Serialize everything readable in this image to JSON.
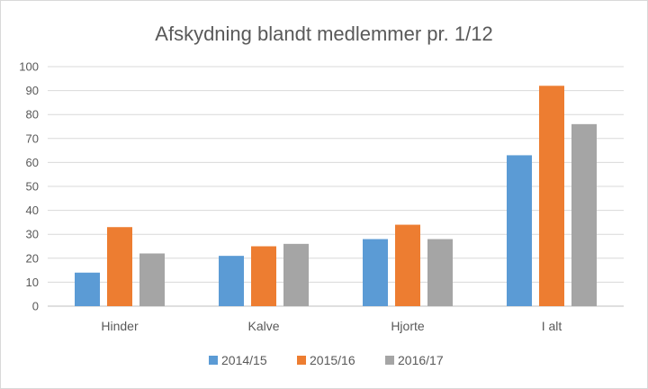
{
  "chart_data": {
    "type": "bar",
    "title": "Afskydning blandt medlemmer pr. 1/12",
    "xlabel": "",
    "ylabel": "",
    "categories": [
      "Hinder",
      "Kalve",
      "Hjorte",
      "I alt"
    ],
    "series": [
      {
        "name": "2014/15",
        "color": "#5b9bd5",
        "values": [
          14,
          21,
          28,
          63
        ]
      },
      {
        "name": "2015/16",
        "color": "#ed7d31",
        "values": [
          33,
          25,
          34,
          92
        ]
      },
      {
        "name": "2016/17",
        "color": "#a5a5a5",
        "values": [
          22,
          26,
          28,
          76
        ]
      }
    ],
    "ylim": [
      0,
      100
    ],
    "yticks": [
      0,
      10,
      20,
      30,
      40,
      50,
      60,
      70,
      80,
      90,
      100
    ],
    "grid": true,
    "legend": "bottom"
  }
}
